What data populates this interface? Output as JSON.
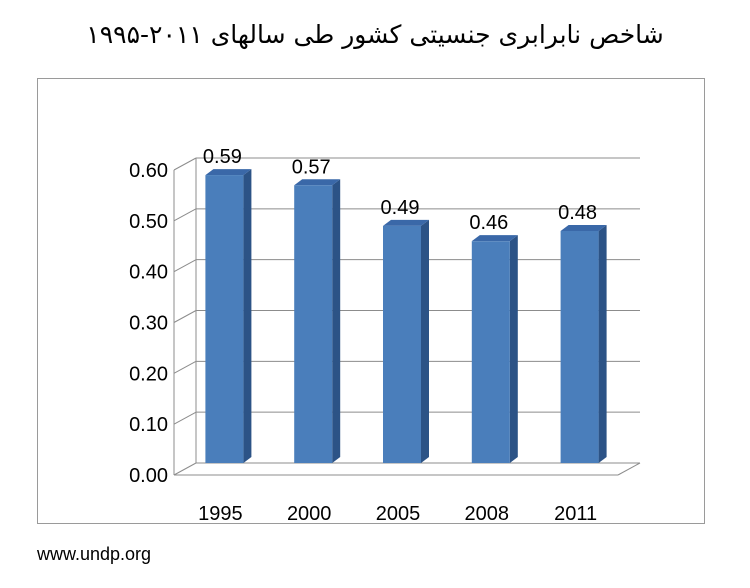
{
  "title": "شاخص نابرابری جنسیتی کشور طی سالهای ۲۰۱۱-۱۹۹۵",
  "source": "www.undp.org",
  "chart_data": {
    "type": "bar",
    "categories": [
      "1995",
      "2000",
      "2005",
      "2008",
      "2011"
    ],
    "values": [
      0.59,
      0.57,
      0.49,
      0.46,
      0.48
    ],
    "value_labels": [
      "0.59",
      "0.57",
      "0.49",
      "0.46",
      "0.48"
    ],
    "yticks": [
      "0.00",
      "0.10",
      "0.20",
      "0.30",
      "0.40",
      "0.50",
      "0.60"
    ],
    "ylim": [
      0,
      0.6
    ],
    "grid": true,
    "legend": "none",
    "style": "3d-column",
    "bar_color": "#4a7ebb",
    "bar_top_color": "#3a68a8",
    "bar_side_color": "#2c5386"
  }
}
